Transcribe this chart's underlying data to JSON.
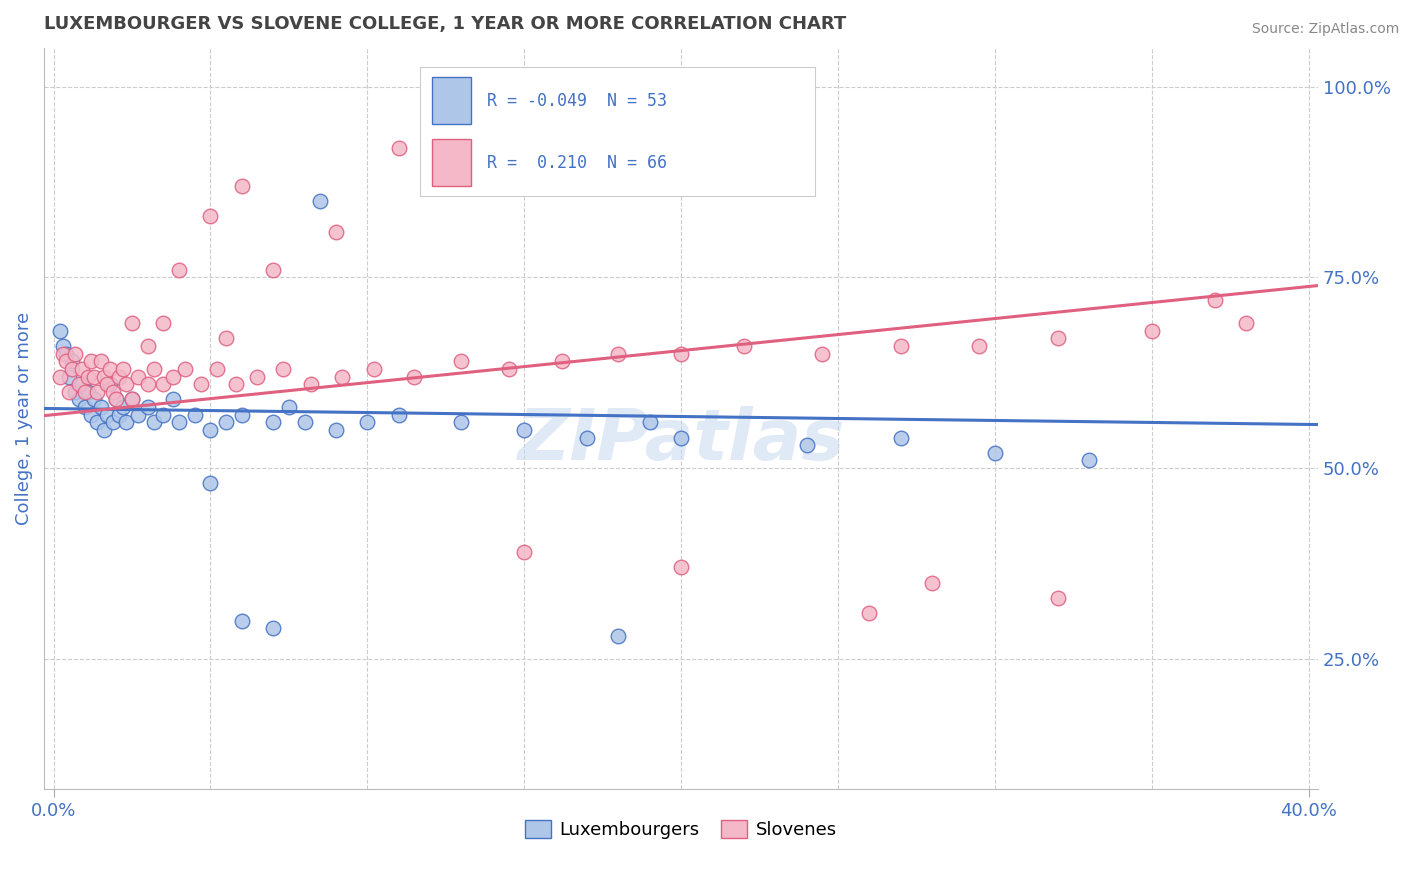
{
  "title": "LUXEMBOURGER VS SLOVENE COLLEGE, 1 YEAR OR MORE CORRELATION CHART",
  "source": "Source: ZipAtlas.com",
  "ylabel": "College, 1 year or more",
  "xlim": [
    -0.003,
    0.403
  ],
  "ylim": [
    0.08,
    1.05
  ],
  "x_ticks": [
    0.0,
    0.4
  ],
  "x_tick_labels": [
    "0.0%",
    "40.0%"
  ],
  "y_ticks_right": [
    0.25,
    0.5,
    0.75,
    1.0
  ],
  "y_tick_labels_right": [
    "25.0%",
    "50.0%",
    "75.0%",
    "100.0%"
  ],
  "blue_fill": "#aec6e8",
  "blue_edge": "#4472c4",
  "pink_fill": "#f4b8c8",
  "pink_edge": "#e06080",
  "blue_line": "#4472c4",
  "pink_line": "#e06080",
  "grid_color": "#cccccc",
  "bg": "#ffffff",
  "title_color": "#444444",
  "source_color": "#888888",
  "tick_color": "#4472c4",
  "legend_r_blue": "-0.049",
  "legend_n_blue": "53",
  "legend_r_pink": "0.210",
  "legend_n_pink": "66",
  "blue_x": [
    0.002,
    0.003,
    0.004,
    0.005,
    0.006,
    0.007,
    0.008,
    0.009,
    0.01,
    0.011,
    0.012,
    0.013,
    0.014,
    0.015,
    0.016,
    0.017,
    0.018,
    0.019,
    0.02,
    0.021,
    0.022,
    0.023,
    0.025,
    0.027,
    0.03,
    0.032,
    0.035,
    0.038,
    0.04,
    0.045,
    0.05,
    0.055,
    0.06,
    0.07,
    0.075,
    0.08,
    0.09,
    0.1,
    0.11,
    0.13,
    0.15,
    0.17,
    0.19,
    0.2,
    0.24,
    0.27,
    0.3,
    0.33,
    0.18,
    0.05,
    0.06,
    0.07,
    0.085
  ],
  "blue_y": [
    0.68,
    0.66,
    0.65,
    0.62,
    0.64,
    0.6,
    0.59,
    0.61,
    0.58,
    0.6,
    0.57,
    0.59,
    0.56,
    0.58,
    0.55,
    0.57,
    0.61,
    0.56,
    0.59,
    0.57,
    0.58,
    0.56,
    0.59,
    0.57,
    0.58,
    0.56,
    0.57,
    0.59,
    0.56,
    0.57,
    0.55,
    0.56,
    0.57,
    0.56,
    0.58,
    0.56,
    0.55,
    0.56,
    0.57,
    0.56,
    0.55,
    0.54,
    0.56,
    0.54,
    0.53,
    0.54,
    0.52,
    0.51,
    0.28,
    0.48,
    0.3,
    0.29,
    0.85
  ],
  "pink_x": [
    0.002,
    0.003,
    0.004,
    0.005,
    0.006,
    0.007,
    0.008,
    0.009,
    0.01,
    0.011,
    0.012,
    0.013,
    0.014,
    0.015,
    0.016,
    0.017,
    0.018,
    0.019,
    0.02,
    0.021,
    0.022,
    0.023,
    0.025,
    0.027,
    0.03,
    0.032,
    0.035,
    0.038,
    0.042,
    0.047,
    0.052,
    0.058,
    0.065,
    0.073,
    0.082,
    0.092,
    0.102,
    0.115,
    0.13,
    0.145,
    0.162,
    0.18,
    0.2,
    0.22,
    0.245,
    0.27,
    0.295,
    0.32,
    0.35,
    0.38,
    0.05,
    0.06,
    0.07,
    0.09,
    0.11,
    0.04,
    0.035,
    0.025,
    0.03,
    0.055,
    0.15,
    0.2,
    0.28,
    0.32,
    0.26,
    0.37
  ],
  "pink_y": [
    0.62,
    0.65,
    0.64,
    0.6,
    0.63,
    0.65,
    0.61,
    0.63,
    0.6,
    0.62,
    0.64,
    0.62,
    0.6,
    0.64,
    0.62,
    0.61,
    0.63,
    0.6,
    0.59,
    0.62,
    0.63,
    0.61,
    0.59,
    0.62,
    0.61,
    0.63,
    0.61,
    0.62,
    0.63,
    0.61,
    0.63,
    0.61,
    0.62,
    0.63,
    0.61,
    0.62,
    0.63,
    0.62,
    0.64,
    0.63,
    0.64,
    0.65,
    0.65,
    0.66,
    0.65,
    0.66,
    0.66,
    0.67,
    0.68,
    0.69,
    0.83,
    0.87,
    0.76,
    0.81,
    0.92,
    0.76,
    0.69,
    0.69,
    0.66,
    0.67,
    0.39,
    0.37,
    0.35,
    0.33,
    0.31,
    0.72
  ]
}
